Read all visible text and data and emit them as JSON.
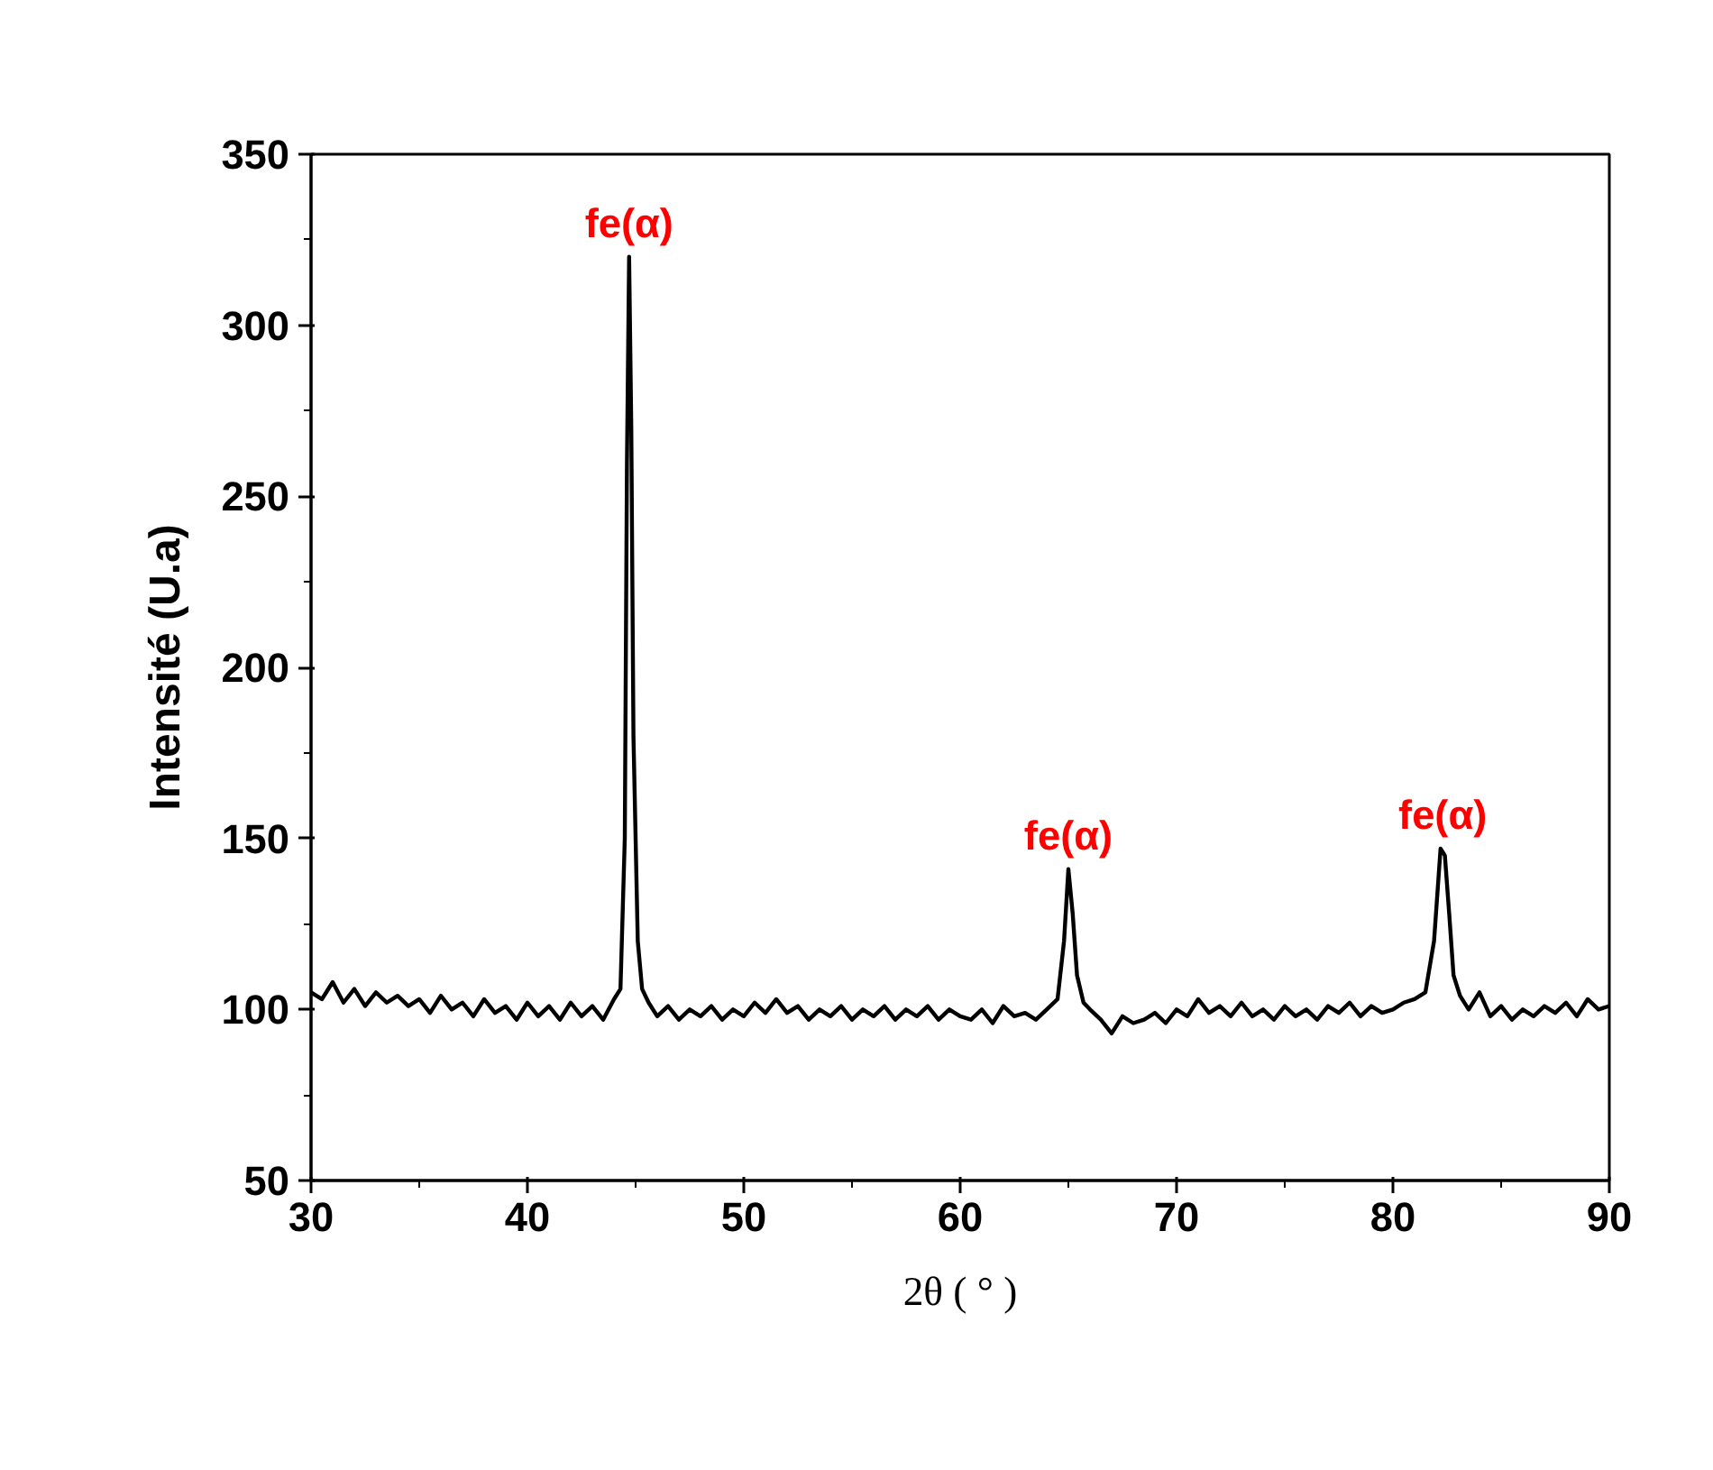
{
  "chart_data": {
    "type": "line",
    "xlabel": "2θ ( ° )",
    "ylabel": "Intensité (U.a)",
    "x": [
      30,
      30.5,
      31,
      31.5,
      32,
      32.5,
      33,
      33.5,
      34,
      34.5,
      35,
      35.5,
      36,
      36.5,
      37,
      37.5,
      38,
      38.5,
      39,
      39.5,
      40,
      40.5,
      41,
      41.5,
      42,
      42.5,
      43,
      43.5,
      44,
      44.3,
      44.5,
      44.6,
      44.7,
      44.8,
      44.9,
      45.1,
      45.3,
      45.6,
      46,
      46.5,
      47,
      47.5,
      48,
      48.5,
      49,
      49.5,
      50,
      50.5,
      51,
      51.5,
      52,
      52.5,
      53,
      53.5,
      54,
      54.5,
      55,
      55.5,
      56,
      56.5,
      57,
      57.5,
      58,
      58.5,
      59,
      59.5,
      60,
      60.5,
      61,
      61.5,
      62,
      62.5,
      63,
      63.5,
      64,
      64.5,
      64.8,
      65.0,
      65.2,
      65.4,
      65.7,
      66,
      66.5,
      67,
      67.5,
      68,
      68.5,
      69,
      69.5,
      70,
      70.5,
      71,
      71.5,
      72,
      72.5,
      73,
      73.5,
      74,
      74.5,
      75,
      75.5,
      76,
      76.5,
      77,
      77.5,
      78,
      78.5,
      79,
      79.5,
      80,
      80.5,
      81,
      81.5,
      81.9,
      82.2,
      82.4,
      82.6,
      82.8,
      83.1,
      83.5,
      84,
      84.5,
      85,
      85.5,
      86,
      86.5,
      87,
      87.5,
      88,
      88.5,
      89,
      89.5,
      90
    ],
    "series": [
      {
        "color": "#000000",
        "values": [
          105,
          103,
          108,
          102,
          106,
          101,
          105,
          102,
          104,
          101,
          103,
          99,
          104,
          100,
          102,
          98,
          103,
          99,
          101,
          97,
          102,
          98,
          101,
          97,
          102,
          98,
          101,
          97,
          103,
          106,
          150,
          260,
          320,
          270,
          180,
          120,
          106,
          102,
          98,
          101,
          97,
          100,
          98,
          101,
          97,
          100,
          98,
          102,
          99,
          103,
          99,
          101,
          97,
          100,
          98,
          101,
          97,
          100,
          98,
          101,
          97,
          100,
          98,
          101,
          97,
          100,
          98,
          97,
          100,
          96,
          101,
          98,
          99,
          97,
          100,
          103,
          120,
          141,
          128,
          110,
          102,
          100,
          97,
          93,
          98,
          96,
          97,
          99,
          96,
          100,
          98,
          103,
          99,
          101,
          98,
          102,
          98,
          100,
          97,
          101,
          98,
          100,
          97,
          101,
          99,
          102,
          98,
          101,
          99,
          100,
          102,
          103,
          105,
          120,
          147,
          145,
          128,
          110,
          104,
          100,
          105,
          98,
          101,
          97,
          100,
          98,
          101,
          99,
          102,
          98,
          103,
          100,
          101
        ]
      }
    ],
    "xlim": [
      30,
      90
    ],
    "ylim": [
      50,
      350
    ],
    "xticks": [
      30,
      40,
      50,
      60,
      70,
      80,
      90
    ],
    "yticks": [
      50,
      100,
      150,
      200,
      250,
      300,
      350
    ],
    "grid": false,
    "marker": "none",
    "line_style": "solid",
    "annotations": [
      {
        "text": "fe(α)",
        "x": 44.7,
        "y": 320
      },
      {
        "text": "fe(α)",
        "x": 65.0,
        "y": 141
      },
      {
        "text": "fe(α)",
        "x": 82.3,
        "y": 147
      }
    ]
  }
}
